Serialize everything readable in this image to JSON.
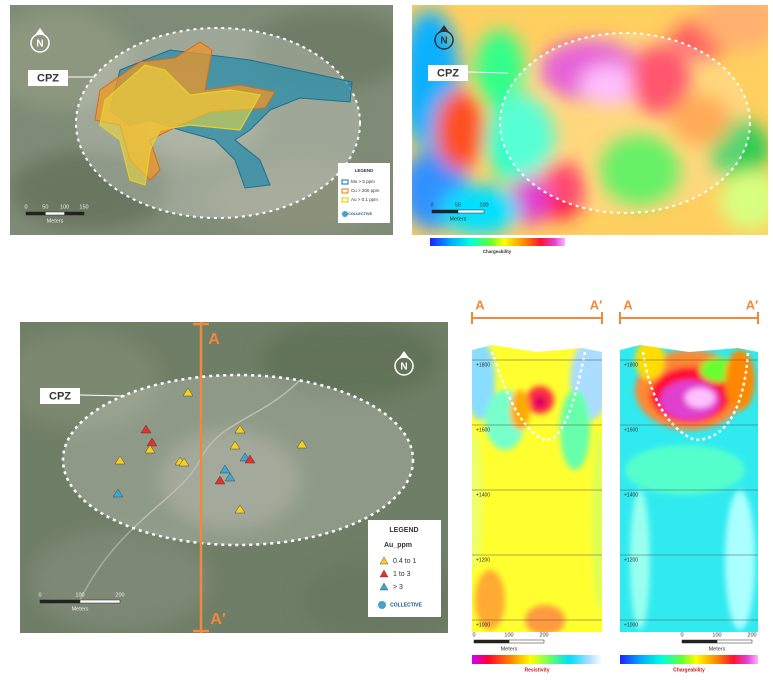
{
  "map_tl": {
    "north": "N",
    "zone": "CPZ",
    "legend": {
      "title": "LEGEND",
      "items": [
        "Mo > 5 ppm",
        "Cu > 200 ppm",
        "Au > 0.1 ppm"
      ],
      "logo": "COLLECTIVE"
    },
    "scale": [
      "0",
      "50",
      "100",
      "150"
    ],
    "scale_unit": "Meters"
  },
  "map_tr": {
    "north": "N",
    "zone": "CPZ",
    "scale": [
      "0",
      "50",
      "100"
    ],
    "scale_unit": "Meters",
    "colorbar": "Chargeability"
  },
  "map_bl": {
    "section": [
      "A",
      "A′"
    ],
    "north": "N",
    "zone": "CPZ",
    "legend": {
      "title": "LEGEND",
      "field": "Au_ppm",
      "items": [
        "0.4 to 1",
        "1 to 3",
        "> 3"
      ],
      "logo": "COLLECTIVE"
    },
    "scale": [
      "0",
      "100",
      "200"
    ],
    "scale_unit": "Meters"
  },
  "section_resistivity": {
    "ends": [
      "A",
      "A′"
    ],
    "elevations": [
      "+1800",
      "+1600",
      "+1400",
      "+1200",
      "+1000"
    ],
    "scale": [
      "0",
      "100",
      "200"
    ],
    "scale_unit": "Meters",
    "colorbar": "Resistivity"
  },
  "section_chargeability": {
    "ends": [
      "A",
      "A′"
    ],
    "elevations": [
      "+1800",
      "+1600",
      "+1400",
      "+1200",
      "+1000"
    ],
    "scale": [
      "0",
      "100",
      "200"
    ],
    "scale_unit": "Meters",
    "colorbar": "Chargeability"
  }
}
